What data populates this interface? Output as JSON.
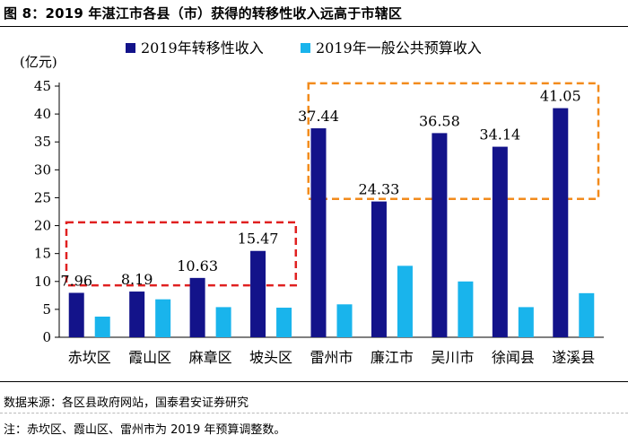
{
  "title": "图 8：2019 年湛江市各县（市）获得的转移性收入远高于市辖区",
  "source": "数据来源：各区县政府网站，国泰君安证券研究",
  "note": "注：赤坎区、霞山区、雷州市为 2019 年预算调整数。",
  "chart_data": {
    "type": "bar",
    "ylabel": "(亿元)",
    "ylim": [
      0,
      45
    ],
    "yticks": [
      0,
      5,
      10,
      15,
      20,
      25,
      30,
      35,
      40,
      45
    ],
    "grid": false,
    "legend": "top",
    "categories": [
      "赤坎区",
      "霞山区",
      "麻章区",
      "坡头区",
      "雷州市",
      "廉江市",
      "吴川市",
      "徐闻县",
      "遂溪县"
    ],
    "series": [
      {
        "name": "2019年转移性收入",
        "color": "#13138a",
        "values": [
          7.96,
          8.19,
          10.63,
          15.47,
          37.44,
          24.33,
          36.58,
          34.14,
          41.05
        ],
        "labels": [
          "7.96",
          "8.19",
          "10.63",
          "15.47",
          "37.44",
          "24.33",
          "36.58",
          "34.14",
          "41.05"
        ]
      },
      {
        "name": "2019年一般公共预算收入",
        "color": "#19b4ec",
        "values": [
          3.7,
          6.8,
          5.4,
          5.3,
          5.9,
          12.8,
          10.0,
          5.4,
          7.9
        ]
      }
    ],
    "highlight_boxes": [
      {
        "color": "#e02020",
        "categories": [
          "赤坎区",
          "坡头区"
        ],
        "y_range": [
          9.3,
          20.6
        ]
      },
      {
        "color": "#f28b1c",
        "categories": [
          "雷州市",
          "遂溪县"
        ],
        "y_range": [
          24.8,
          45.5
        ]
      }
    ]
  }
}
